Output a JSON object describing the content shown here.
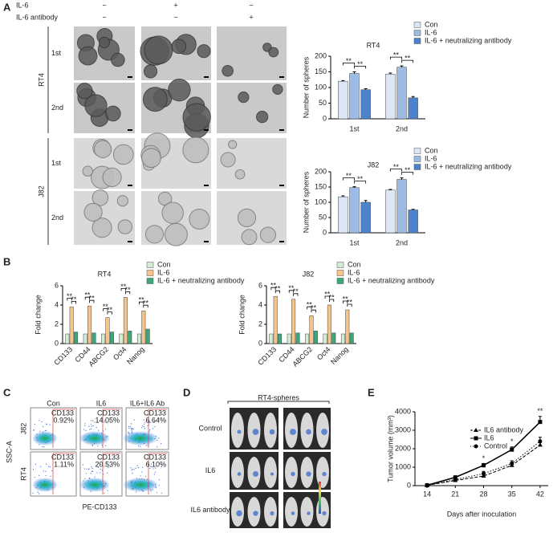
{
  "panel_labels": [
    "A",
    "B",
    "C",
    "D",
    "E"
  ],
  "panel_a": {
    "treatments": [
      {
        "name": "IL-6",
        "marks": [
          "−",
          "+",
          "−"
        ]
      },
      {
        "name": "IL-6 antibody",
        "marks": [
          "−",
          "−",
          "+"
        ]
      }
    ],
    "cell_lines": [
      {
        "name": "RT4",
        "rounds": [
          "1st",
          "2nd"
        ]
      },
      {
        "name": "J82",
        "rounds": [
          "1st",
          "2nd"
        ]
      }
    ]
  },
  "panel_c": {
    "columns": [
      "Con",
      "IL6",
      "IL6+IL6  Ab"
    ],
    "rows": [
      "J82",
      "RT4"
    ],
    "marker": "CD133",
    "percentages": [
      [
        "0.92%",
        "14.05%",
        "6.64%"
      ],
      [
        "1.11%",
        "20.53%",
        "6.10%"
      ]
    ],
    "ylabel": "SSC-A",
    "xlabel": "PE-CD133"
  },
  "panel_d": {
    "title": "RT4-spheres",
    "rows": [
      "Control",
      "IL6",
      "IL6 antibody"
    ]
  },
  "chart_data": [
    {
      "type": "bar",
      "title": "RT4",
      "ylabel": "Number of spheres",
      "categories": [
        "1st",
        "2nd"
      ],
      "series": [
        {
          "name": "Con",
          "color": "#dce6f5",
          "values": [
            120,
            143
          ],
          "errors": [
            2,
            3
          ]
        },
        {
          "name": "IL-6",
          "color": "#9dbbe3",
          "values": [
            145,
            165
          ],
          "errors": [
            5,
            4
          ]
        },
        {
          "name": "IL-6 + neutralizing antibody",
          "color": "#4d82cc",
          "values": [
            93,
            67
          ],
          "errors": [
            3,
            4
          ]
        }
      ],
      "ylim": [
        0,
        200
      ],
      "yticks": [
        0,
        50,
        100,
        150,
        200
      ],
      "significance": [
        [
          "**",
          "**"
        ],
        [
          "**",
          "**"
        ]
      ]
    },
    {
      "type": "bar",
      "title": "J82",
      "ylabel": "Number of spheres",
      "categories": [
        "1st",
        "2nd"
      ],
      "series": [
        {
          "name": "Con",
          "color": "#dce6f5",
          "values": [
            118,
            140
          ],
          "errors": [
            3,
            2
          ]
        },
        {
          "name": "IL-6",
          "color": "#9dbbe3",
          "values": [
            148,
            175
          ],
          "errors": [
            3,
            5
          ]
        },
        {
          "name": "IL-6 + neutralizing antibody",
          "color": "#4d82cc",
          "values": [
            100,
            75
          ],
          "errors": [
            6,
            2
          ]
        }
      ],
      "ylim": [
        0,
        200
      ],
      "yticks": [
        0,
        50,
        100,
        150,
        200
      ],
      "significance": [
        [
          "**",
          "**"
        ],
        [
          "**",
          "**"
        ]
      ]
    },
    {
      "type": "bar",
      "title": "RT4",
      "ylabel": "Fold change",
      "categories": [
        "CD133",
        "CD44",
        "ABCG2",
        "Oct4",
        "Nanog"
      ],
      "series": [
        {
          "name": "Con",
          "color": "#d4ecd4",
          "values": [
            1,
            1,
            1,
            1,
            1
          ]
        },
        {
          "name": "IL-6",
          "color": "#f5c48a",
          "values": [
            3.8,
            3.9,
            2.7,
            4.8,
            3.4
          ]
        },
        {
          "name": "IL-6 + neutralizing antibody",
          "color": "#3aa878",
          "values": [
            1.2,
            1.1,
            1.2,
            1.3,
            1.5
          ]
        }
      ],
      "ylim": [
        0,
        6
      ],
      "yticks": [
        0,
        2,
        4,
        6
      ],
      "xtick_rotation": 45,
      "significance": [
        [
          "**",
          "**"
        ],
        [
          "**",
          "**"
        ],
        [
          "**",
          "**"
        ],
        [
          "**",
          "**"
        ],
        [
          "**",
          "**"
        ]
      ]
    },
    {
      "type": "bar",
      "title": "J82",
      "ylabel": "Fold change",
      "categories": [
        "CD133",
        "CD44",
        "ABCG2",
        "Oct4",
        "Nanog"
      ],
      "series": [
        {
          "name": "Con",
          "color": "#d4ecd4",
          "values": [
            1,
            1,
            1,
            1,
            1
          ]
        },
        {
          "name": "IL-6",
          "color": "#f5c48a",
          "values": [
            4.9,
            4.6,
            2.9,
            4.0,
            3.5
          ]
        },
        {
          "name": "IL-6 + neutralizing antibody",
          "color": "#3aa878",
          "values": [
            1.0,
            1.1,
            1.3,
            1.1,
            1.1
          ]
        }
      ],
      "ylim": [
        0,
        6
      ],
      "yticks": [
        0,
        2,
        4,
        6
      ],
      "xtick_rotation": 45,
      "significance": [
        [
          "**",
          "**"
        ],
        [
          "**",
          "**"
        ],
        [
          "**",
          "**"
        ],
        [
          "**",
          "**"
        ],
        [
          "**",
          "**"
        ]
      ]
    },
    {
      "type": "line",
      "xlabel": "Days after inoculation",
      "ylabel": "Tumor volume (mm³)",
      "x": [
        14,
        21,
        28,
        35,
        42
      ],
      "series": [
        {
          "name": "IL6 antibody",
          "color": "#000000",
          "marker": "triangle",
          "linestyle": "dashed",
          "values": [
            20,
            280,
            520,
            1100,
            2200
          ],
          "errors": [
            10,
            40,
            60,
            120,
            180
          ]
        },
        {
          "name": "IL6",
          "color": "#000000",
          "marker": "square",
          "linestyle": "solid",
          "values": [
            20,
            450,
            1100,
            1950,
            3450
          ],
          "errors": [
            10,
            50,
            100,
            150,
            300
          ]
        },
        {
          "name": "Control",
          "color": "#000000",
          "marker": "circle",
          "linestyle": "dotted",
          "values": [
            20,
            330,
            650,
            1200,
            2400
          ],
          "errors": [
            10,
            40,
            120,
            150,
            220
          ]
        }
      ],
      "xlim": [
        11,
        44
      ],
      "xticks": [
        14,
        21,
        28,
        35,
        42
      ],
      "ylim": [
        0,
        4000
      ],
      "yticks": [
        0,
        1000,
        2000,
        3000,
        4000
      ],
      "annotations": [
        {
          "x": 28,
          "text": "*"
        },
        {
          "x": 35,
          "text": "*"
        },
        {
          "x": 42,
          "text": "**"
        }
      ]
    }
  ]
}
